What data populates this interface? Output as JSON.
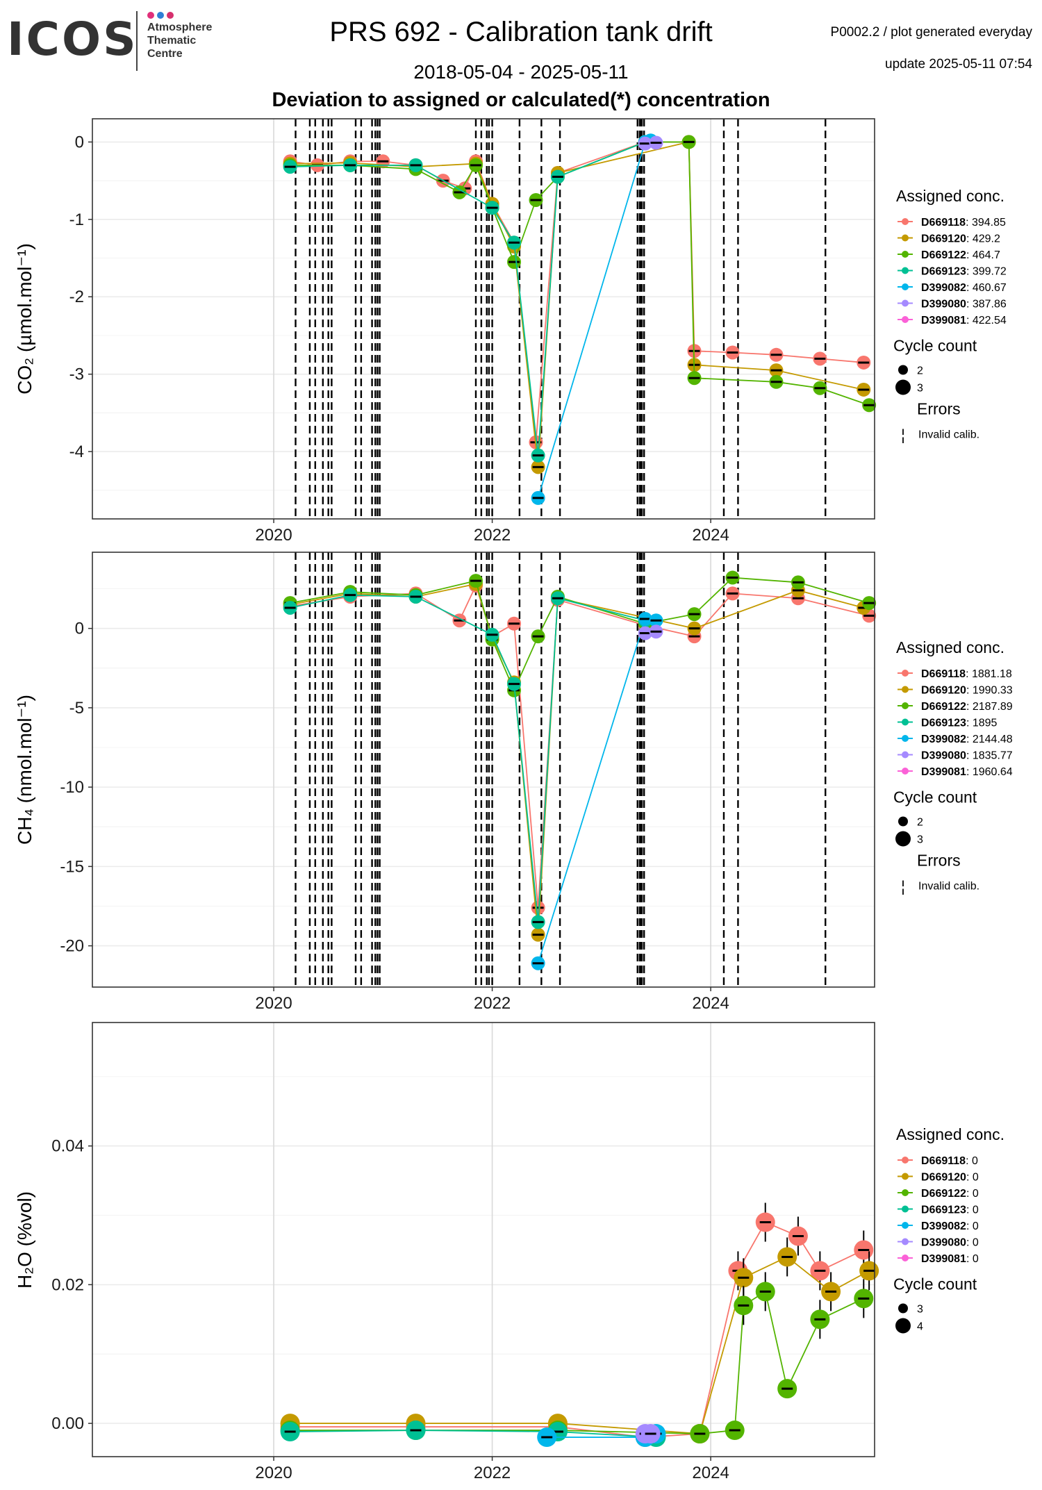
{
  "header": {
    "logo_text": "ICOS",
    "logo_subtitle": "Atmosphere\nThematic\nCentre",
    "logo_dot_colors": [
      "#e0307a",
      "#2f7fd6",
      "#d6306d"
    ],
    "title": "PRS 692 - Calibration tank drift",
    "date_range": "2018-05-04 - 2025-05-11",
    "subtitle": "Deviation to assigned or calculated(*) concentration",
    "meta_line1": "P0002.2 / plot generated everyday",
    "meta_line2": "update  2025-05-11 07:54"
  },
  "colors": {
    "D669118": "#F8766D",
    "D669120": "#C49A00",
    "D669122": "#53B400",
    "D669123": "#00C094",
    "D399082": "#00B6EB",
    "D399080": "#A58AFF",
    "D399081": "#FB61D7"
  },
  "chart_data": [
    {
      "type": "scatter",
      "ylabel": "CO₂ (µmol.mol⁻¹)",
      "xticks": [
        "2020",
        "2022",
        "2024"
      ],
      "yticks": [
        "0",
        "-1",
        "-2",
        "-3",
        "-4"
      ],
      "xlim": [
        2018.34,
        2025.5
      ],
      "ylim": [
        -4.87,
        0.3
      ],
      "legend": {
        "title": "Assigned conc.",
        "position": "right",
        "entries": [
          {
            "tank": "D669118",
            "value": ": 394.85"
          },
          {
            "tank": "D669120",
            "value": ": 429.2"
          },
          {
            "tank": "D669122",
            "value": ": 464.7"
          },
          {
            "tank": "D669123",
            "value": ": 399.72"
          },
          {
            "tank": "D399082",
            "value": ": 460.67"
          },
          {
            "tank": "D399080",
            "value": ": 387.86"
          },
          {
            "tank": "D399081",
            "value": ": 422.54"
          }
        ],
        "cycle_title": "Cycle count",
        "cycle_labels": [
          "2",
          "3"
        ],
        "errors_title": "Errors",
        "errors_label": "Invalid calib.",
        "errors_symbol": "¦"
      },
      "vlines": [
        2020.2,
        2020.33,
        2020.38,
        2020.45,
        2020.5,
        2020.53,
        2020.75,
        2020.8,
        2020.9,
        2020.93,
        2020.95,
        2020.97,
        2021.85,
        2021.9,
        2021.95,
        2021.97,
        2022.0,
        2022.25,
        2022.45,
        2022.62,
        2023.33,
        2023.35,
        2023.36,
        2023.37,
        2023.39,
        2024.12,
        2024.25,
        2025.05
      ],
      "series": [
        {
          "name": "D669118",
          "x": [
            2020.15,
            2020.4,
            2020.7,
            2021.0,
            2021.3,
            2021.55,
            2021.75,
            2021.85,
            2022.0,
            2022.2,
            2022.4,
            2022.6,
            2023.4,
            2023.8,
            2023.85,
            2024.2,
            2024.6,
            2025.0,
            2025.4
          ],
          "y": [
            -0.25,
            -0.3,
            -0.25,
            -0.25,
            -0.3,
            -0.5,
            -0.6,
            -0.25,
            -0.8,
            -1.3,
            -3.88,
            -0.4,
            0.0,
            0.0,
            -2.7,
            -2.72,
            -2.75,
            -2.8,
            -2.85
          ]
        },
        {
          "name": "D669120",
          "x": [
            2020.15,
            2020.7,
            2021.3,
            2021.85,
            2022.0,
            2022.2,
            2022.42,
            2022.6,
            2023.8,
            2023.85,
            2024.6,
            2025.4
          ],
          "y": [
            -0.28,
            -0.27,
            -0.32,
            -0.28,
            -0.8,
            -1.35,
            -4.2,
            -0.4,
            0.0,
            -2.88,
            -2.95,
            -3.2
          ]
        },
        {
          "name": "D669122",
          "x": [
            2020.15,
            2020.7,
            2021.3,
            2021.7,
            2021.85,
            2022.0,
            2022.2,
            2022.4,
            2022.6,
            2023.4,
            2023.8,
            2023.85,
            2024.6,
            2025.0,
            2025.45
          ],
          "y": [
            -0.3,
            -0.3,
            -0.35,
            -0.65,
            -0.3,
            -0.85,
            -1.55,
            -0.75,
            -0.45,
            0.0,
            0.0,
            -3.05,
            -3.1,
            -3.18,
            -3.4
          ]
        },
        {
          "name": "D669123",
          "x": [
            2020.15,
            2020.7,
            2021.3,
            2022.0,
            2022.2,
            2022.42,
            2022.6,
            2023.4
          ],
          "y": [
            -0.32,
            -0.3,
            -0.3,
            -0.85,
            -1.3,
            -4.05,
            -0.45,
            0.0
          ]
        },
        {
          "name": "D399082",
          "x": [
            2022.42,
            2023.4,
            2023.45
          ],
          "y": [
            -4.6,
            0.0,
            0.02
          ]
        },
        {
          "name": "D399080",
          "x": [
            2023.4,
            2023.5
          ],
          "y": [
            -0.02,
            -0.01
          ]
        },
        {
          "name": "D399081",
          "x": [],
          "y": []
        }
      ]
    },
    {
      "type": "scatter",
      "ylabel": "CH₄ (nmol.mol⁻¹)",
      "xticks": [
        "2020",
        "2022",
        "2024"
      ],
      "yticks": [
        "0",
        "-5",
        "-10",
        "-15",
        "-20"
      ],
      "xlim": [
        2018.34,
        2025.5
      ],
      "ylim": [
        -22.6,
        4.8
      ],
      "legend": {
        "title": "Assigned conc.",
        "position": "right",
        "entries": [
          {
            "tank": "D669118",
            "value": ": 1881.18"
          },
          {
            "tank": "D669120",
            "value": ": 1990.33"
          },
          {
            "tank": "D669122",
            "value": ": 2187.89"
          },
          {
            "tank": "D669123",
            "value": ": 1895"
          },
          {
            "tank": "D399082",
            "value": ": 2144.48"
          },
          {
            "tank": "D399080",
            "value": ": 1835.77"
          },
          {
            "tank": "D399081",
            "value": ": 1960.64"
          }
        ],
        "cycle_title": "Cycle count",
        "cycle_labels": [
          "2",
          "3"
        ],
        "errors_title": "Errors",
        "errors_label": "Invalid calib.",
        "errors_symbol": "¦"
      },
      "vlines": [
        2020.2,
        2020.33,
        2020.38,
        2020.45,
        2020.5,
        2020.53,
        2020.75,
        2020.8,
        2020.9,
        2020.93,
        2020.95,
        2020.97,
        2021.85,
        2021.9,
        2021.95,
        2021.97,
        2022.0,
        2022.25,
        2022.45,
        2022.62,
        2023.33,
        2023.35,
        2023.36,
        2023.37,
        2023.39,
        2024.12,
        2024.25,
        2025.05
      ],
      "series": [
        {
          "name": "D669118",
          "x": [
            2020.15,
            2020.7,
            2021.3,
            2021.7,
            2021.85,
            2022.0,
            2022.2,
            2022.42,
            2022.6,
            2023.4,
            2023.85,
            2024.2,
            2024.8,
            2025.45
          ],
          "y": [
            1.4,
            2.0,
            2.2,
            0.5,
            2.7,
            -0.5,
            0.3,
            -17.6,
            1.8,
            0.2,
            -0.5,
            2.2,
            1.9,
            0.8
          ]
        },
        {
          "name": "D669120",
          "x": [
            2020.15,
            2020.7,
            2021.3,
            2021.85,
            2022.0,
            2022.2,
            2022.42,
            2022.6,
            2023.85,
            2024.8,
            2025.4
          ],
          "y": [
            1.5,
            2.2,
            2.0,
            2.8,
            -0.6,
            -3.4,
            -19.3,
            1.9,
            0.0,
            2.4,
            1.3
          ]
        },
        {
          "name": "D669122",
          "x": [
            2020.15,
            2020.7,
            2021.3,
            2021.85,
            2022.0,
            2022.2,
            2022.42,
            2022.6,
            2023.4,
            2023.85,
            2024.2,
            2024.8,
            2025.45
          ],
          "y": [
            1.6,
            2.3,
            2.1,
            3.0,
            -0.7,
            -3.9,
            -0.5,
            2.0,
            0.3,
            0.9,
            3.2,
            2.9,
            1.6
          ]
        },
        {
          "name": "D669123",
          "x": [
            2020.15,
            2020.7,
            2021.3,
            2022.0,
            2022.2,
            2022.42,
            2022.6,
            2023.4
          ],
          "y": [
            1.3,
            2.1,
            2.0,
            -0.4,
            -3.5,
            -18.5,
            1.9,
            0.5
          ]
        },
        {
          "name": "D399082",
          "x": [
            2022.42,
            2023.4,
            2023.5
          ],
          "y": [
            -21.1,
            0.6,
            0.5
          ]
        },
        {
          "name": "D399080",
          "x": [
            2023.4,
            2023.5
          ],
          "y": [
            -0.3,
            -0.2
          ]
        },
        {
          "name": "D399081",
          "x": [],
          "y": []
        }
      ]
    },
    {
      "type": "scatter",
      "ylabel": "H₂O (%vol)",
      "xticks": [
        "2020",
        "2022",
        "2024"
      ],
      "yticks": [
        "0.00",
        "0.02",
        "0.04"
      ],
      "xlim": [
        2018.34,
        2025.5
      ],
      "ylim": [
        -0.0048,
        0.0578
      ],
      "legend": {
        "title": "Assigned conc.",
        "position": "right",
        "entries": [
          {
            "tank": "D669118",
            "value": ": 0"
          },
          {
            "tank": "D669120",
            "value": ": 0"
          },
          {
            "tank": "D669122",
            "value": ": 0"
          },
          {
            "tank": "D669123",
            "value": ": 0"
          },
          {
            "tank": "D399082",
            "value": ": 0"
          },
          {
            "tank": "D399080",
            "value": ": 0"
          },
          {
            "tank": "D399081",
            "value": ": 0"
          }
        ],
        "cycle_title": "Cycle count",
        "cycle_labels": [
          "3",
          "4"
        ]
      },
      "vlines": [],
      "series": [
        {
          "name": "D669118",
          "x": [
            2020.15,
            2021.3,
            2022.6,
            2023.4,
            2023.9,
            2024.25,
            2024.5,
            2024.8,
            2025.0,
            2025.4
          ],
          "y": [
            -0.0005,
            -0.0005,
            -0.0005,
            -0.002,
            -0.0015,
            0.022,
            0.029,
            0.027,
            0.022,
            0.025
          ]
        },
        {
          "name": "D669120",
          "x": [
            2020.15,
            2021.3,
            2022.6,
            2023.9,
            2024.3,
            2024.7,
            2025.1,
            2025.45
          ],
          "y": [
            0.0,
            0.0,
            0.0,
            -0.0015,
            0.021,
            0.024,
            0.019,
            0.022
          ]
        },
        {
          "name": "D669122",
          "x": [
            2020.15,
            2021.3,
            2022.6,
            2023.9,
            2024.22,
            2024.3,
            2024.5,
            2024.7,
            2025.0,
            2025.4
          ],
          "y": [
            -0.001,
            -0.001,
            -0.001,
            -0.0015,
            -0.001,
            0.017,
            0.019,
            0.005,
            0.015,
            0.018
          ]
        },
        {
          "name": "D669123",
          "x": [
            2020.15,
            2021.3,
            2022.6,
            2023.5
          ],
          "y": [
            -0.0012,
            -0.001,
            -0.0012,
            -0.002
          ]
        },
        {
          "name": "D399082",
          "x": [
            2022.5,
            2023.4,
            2023.5
          ],
          "y": [
            -0.002,
            -0.002,
            -0.0015
          ]
        },
        {
          "name": "D399080",
          "x": [
            2023.4,
            2023.45
          ],
          "y": [
            -0.0015,
            -0.0015
          ]
        },
        {
          "name": "D399081",
          "x": [],
          "y": []
        }
      ]
    }
  ]
}
